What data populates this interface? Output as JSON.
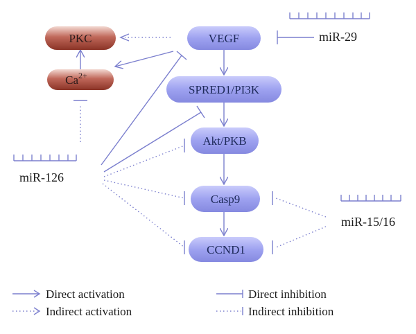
{
  "nodes": {
    "pkc": "PKC",
    "ca": "Ca",
    "ca_sup": "2+",
    "vegf": "VEGF",
    "spred": "SPRED1/PI3K",
    "akt": "Akt/PKB",
    "casp9": "Casp9",
    "ccnd1": "CCND1"
  },
  "mirnas": {
    "mir29": "miR-29",
    "mir126": "miR-126",
    "mir1516": "miR-15/16"
  },
  "legend": {
    "direct_activation": "Direct activation",
    "indirect_activation": "Indirect activation",
    "direct_inhibition": "Direct inhibition",
    "indirect_inhibition": "Indirect inhibition"
  },
  "colors": {
    "blue_node": "#9ea2f0",
    "red_node": "#a8473a",
    "edge": "#7b7fce"
  }
}
